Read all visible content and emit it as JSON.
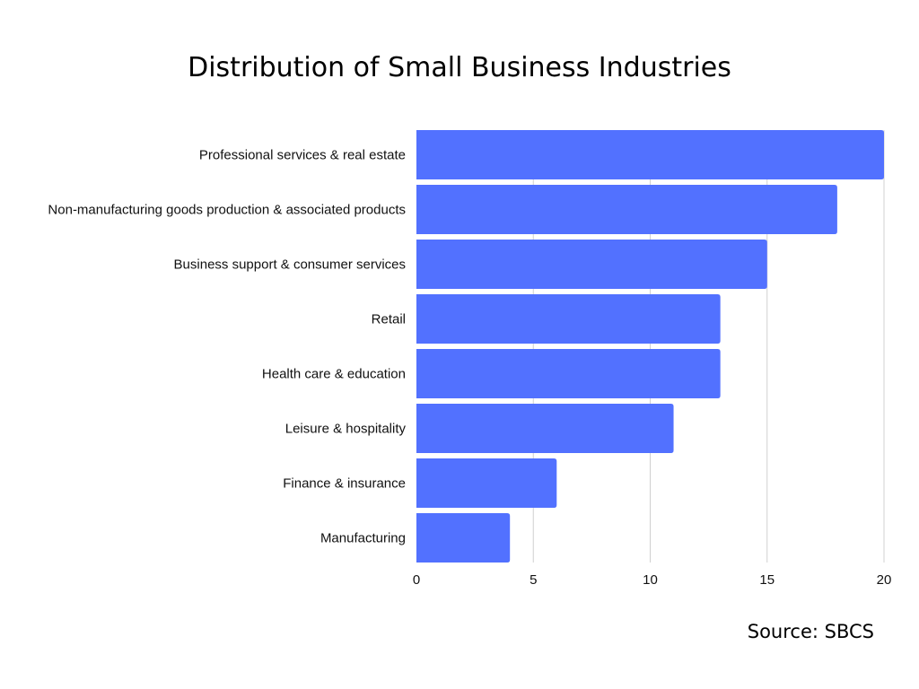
{
  "chart_data": {
    "type": "bar",
    "orientation": "horizontal",
    "title": "Distribution of Small Business Industries",
    "source": "Source: SBCS",
    "categories": [
      "Professional services & real estate",
      "Non-manufacturing goods production & associated products",
      "Business support & consumer services",
      "Retail",
      "Health care & education",
      "Leisure & hospitality",
      "Finance & insurance",
      "Manufacturing"
    ],
    "values": [
      20,
      18,
      15,
      13,
      13,
      11,
      6,
      4
    ],
    "xlim": [
      0,
      20
    ],
    "xticks": [
      0,
      5,
      10,
      15,
      20
    ],
    "grid": true,
    "legend": "none",
    "colors": {
      "bar": "#5271ff",
      "grid": "#d0d0d0"
    }
  }
}
